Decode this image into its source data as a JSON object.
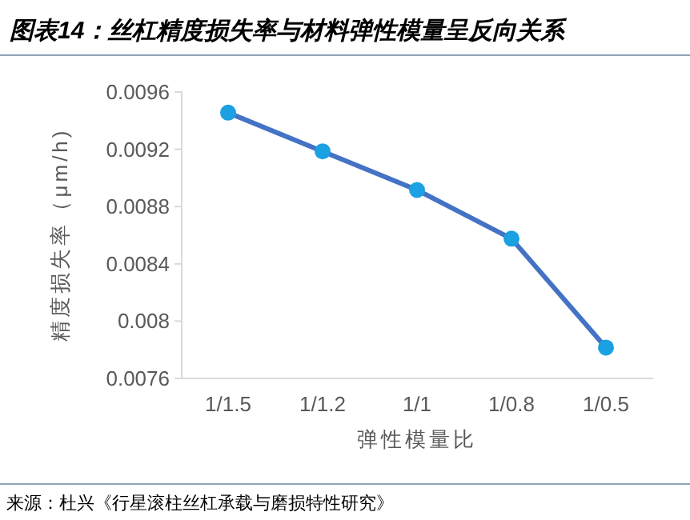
{
  "chart_data": {
    "type": "line",
    "title": "图表14：丝杠精度损失率与材料弹性模量呈反向关系",
    "xlabel": "弹性模量比",
    "ylabel": "精度损失率（μm/h)",
    "categories": [
      "1/1.5",
      "1/1.2",
      "1/1",
      "1/0.8",
      "1/0.5"
    ],
    "series": [
      {
        "color": "#4472c4",
        "colors": [
          "#1ba1e2",
          "#1ba1e2",
          "#1ba1e2",
          "#1ba1e2",
          "#1ba1e2"
        ],
        "values": [
          0.00945,
          0.00918,
          0.00891,
          0.00857,
          0.00781
        ]
      }
    ],
    "ylim": [
      0.0076,
      0.0096
    ],
    "yticks": [
      0.0076,
      0.008,
      0.0084,
      0.0088,
      0.0092,
      0.0096
    ],
    "marker": "circle",
    "annotations": [
      "来源：杜兴《行星滚柱丝杠承载与磨损特性研究》"
    ]
  }
}
